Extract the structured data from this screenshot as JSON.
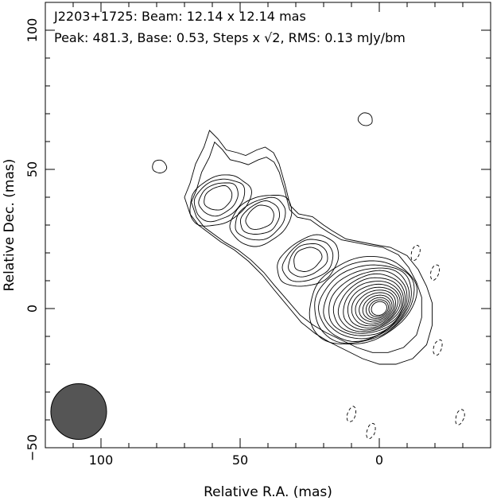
{
  "chart_data": {
    "type": "contour",
    "source": "J2203+1725",
    "title_line1": "J2203+1725: Beam: 12.14 x 12.14 mas",
    "title_line2": "Peak: 481.3, Base: 0.53, Steps x √2, RMS: 0.13 mJy/bm",
    "xlabel": "Relative R.A. (mas)",
    "ylabel": "Relative Dec. (mas)",
    "xlim": [
      120,
      -40
    ],
    "ylim": [
      -50,
      110
    ],
    "xticks": [
      100,
      50,
      0
    ],
    "yticks": [
      100,
      50,
      0,
      -50
    ],
    "x_tick_labels": [
      "100",
      "50",
      "0"
    ],
    "y_tick_labels": [
      "100",
      "50",
      "0",
      "−50"
    ],
    "beam": {
      "ra": 108,
      "dec": -37,
      "diameter": 12.14
    },
    "peak": {
      "ra": 0,
      "dec": 0,
      "value": 481.3,
      "unit": "mJy/bm"
    },
    "base_level": 0.53,
    "level_step": "x√2",
    "rms": 0.13,
    "core_contours": 16,
    "secondary_components": [
      {
        "ra": 58,
        "dec": 40,
        "contours": 4
      },
      {
        "ra": 43,
        "dec": 33,
        "contours": 4
      },
      {
        "ra": 26,
        "dec": 18,
        "contours": 4
      }
    ],
    "isolated_features": [
      {
        "ra": 5,
        "dec": 68,
        "sign": "positive"
      },
      {
        "ra": 79,
        "dec": 51,
        "sign": "positive"
      },
      {
        "ra": -13,
        "dec": 20,
        "sign": "negative"
      },
      {
        "ra": -20,
        "dec": 13,
        "sign": "negative"
      },
      {
        "ra": -21,
        "dec": -14,
        "sign": "negative"
      },
      {
        "ra": 10,
        "dec": -38,
        "sign": "negative"
      },
      {
        "ra": 3,
        "dec": -44,
        "sign": "negative"
      },
      {
        "ra": -29,
        "dec": -39,
        "sign": "negative"
      }
    ]
  }
}
